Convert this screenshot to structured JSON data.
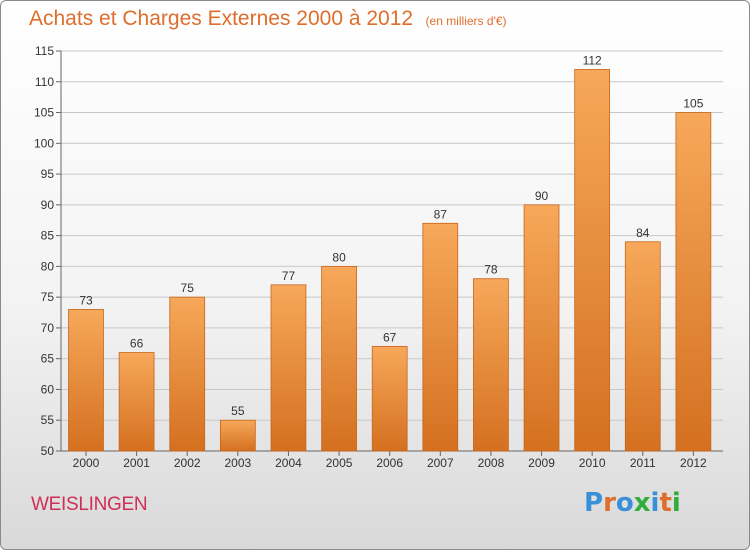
{
  "header": {
    "title": "Achats et Charges Externes 2000 à 2012",
    "unit": "(en milliers d'€)"
  },
  "footer": {
    "commune": "WEISLINGEN",
    "logo": "Proxiti",
    "logo_colors": [
      "#3a8fd9",
      "#de6e2b",
      "#3a8fd9",
      "#2fae3c",
      "#3a8fd9",
      "#de6e2b",
      "#2fae3c"
    ]
  },
  "colors": {
    "bar_top": "#f7a85a",
    "bar_bottom": "#d47020",
    "bar_edge": "#c8651a",
    "title": "#de6e2b",
    "commune": "#cf2f57"
  },
  "chart_data": {
    "type": "bar",
    "title": "Achats et Charges Externes 2000 à 2012",
    "subtitle": "(en milliers d'€)",
    "xlabel": "",
    "ylabel": "",
    "categories": [
      "2000",
      "2001",
      "2002",
      "2003",
      "2004",
      "2005",
      "2006",
      "2007",
      "2008",
      "2009",
      "2010",
      "2011",
      "2012"
    ],
    "values": [
      73,
      66,
      75,
      55,
      77,
      80,
      67,
      87,
      78,
      90,
      112,
      84,
      105
    ],
    "ylim": [
      50,
      115
    ],
    "yticks": [
      50,
      55,
      60,
      65,
      70,
      75,
      80,
      85,
      90,
      95,
      100,
      105,
      110,
      115
    ],
    "grid": true,
    "data_labels": true
  }
}
